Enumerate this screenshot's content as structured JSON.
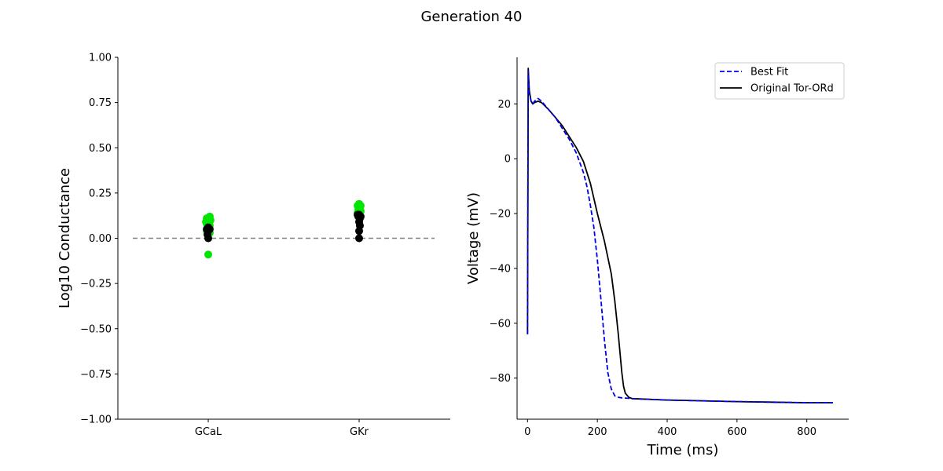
{
  "figure": {
    "title": "Generation 40"
  },
  "chart_data": [
    {
      "type": "scatter",
      "title": "",
      "xlabel": "",
      "ylabel": "Log10 Conductance",
      "categories": [
        "GCaL",
        "GKr"
      ],
      "ylim": [
        -1.0,
        1.0
      ],
      "yticks": [
        -1.0,
        -0.75,
        -0.5,
        -0.25,
        0.0,
        0.25,
        0.5,
        0.75,
        1.0
      ],
      "ytick_labels": [
        "−1.00",
        "−0.75",
        "−0.50",
        "−0.25",
        "0.00",
        "0.25",
        "0.50",
        "0.75",
        "1.00"
      ],
      "reference_line": {
        "y": 0.0,
        "style": "dashed",
        "color": "#808080"
      },
      "series": [
        {
          "color": "#00e600",
          "points": [
            {
              "category": "GCaL",
              "offset": -0.01,
              "y": 0.11
            },
            {
              "category": "GCaL",
              "offset": 0.01,
              "y": 0.12
            },
            {
              "category": "GCaL",
              "offset": 0.0,
              "y": 0.1
            },
            {
              "category": "GCaL",
              "offset": -0.015,
              "y": 0.09
            },
            {
              "category": "GCaL",
              "offset": 0.015,
              "y": 0.1
            },
            {
              "category": "GCaL",
              "offset": -0.01,
              "y": 0.08
            },
            {
              "category": "GCaL",
              "offset": 0.01,
              "y": 0.07
            },
            {
              "category": "GCaL",
              "offset": -0.005,
              "y": 0.06
            },
            {
              "category": "GCaL",
              "offset": 0.005,
              "y": 0.05
            },
            {
              "category": "GCaL",
              "offset": -0.01,
              "y": 0.04
            },
            {
              "category": "GCaL",
              "offset": 0.01,
              "y": 0.03
            },
            {
              "category": "GCaL",
              "offset": 0.0,
              "y": -0.09
            },
            {
              "category": "GKr",
              "offset": 0.0,
              "y": 0.19
            },
            {
              "category": "GKr",
              "offset": 0.01,
              "y": 0.18
            },
            {
              "category": "GKr",
              "offset": -0.01,
              "y": 0.18
            },
            {
              "category": "GKr",
              "offset": 0.005,
              "y": 0.17
            },
            {
              "category": "GKr",
              "offset": -0.005,
              "y": 0.16
            },
            {
              "category": "GKr",
              "offset": 0.01,
              "y": 0.15
            },
            {
              "category": "GKr",
              "offset": -0.01,
              "y": 0.14
            },
            {
              "category": "GKr",
              "offset": 0.0,
              "y": 0.13
            }
          ]
        },
        {
          "color": "#000000",
          "points": [
            {
              "category": "GCaL",
              "offset": 0.0,
              "y": 0.06
            },
            {
              "category": "GCaL",
              "offset": 0.01,
              "y": 0.05
            },
            {
              "category": "GCaL",
              "offset": -0.01,
              "y": 0.05
            },
            {
              "category": "GCaL",
              "offset": 0.0,
              "y": 0.04
            },
            {
              "category": "GCaL",
              "offset": -0.005,
              "y": 0.02
            },
            {
              "category": "GCaL",
              "offset": 0.0,
              "y": 0.0
            },
            {
              "category": "GKr",
              "offset": -0.01,
              "y": 0.13
            },
            {
              "category": "GKr",
              "offset": 0.0,
              "y": 0.13
            },
            {
              "category": "GKr",
              "offset": 0.01,
              "y": 0.12
            },
            {
              "category": "GKr",
              "offset": -0.005,
              "y": 0.12
            },
            {
              "category": "GKr",
              "offset": 0.005,
              "y": 0.11
            },
            {
              "category": "GKr",
              "offset": 0.0,
              "y": 0.09
            },
            {
              "category": "GKr",
              "offset": 0.005,
              "y": 0.07
            },
            {
              "category": "GKr",
              "offset": 0.0,
              "y": 0.04
            },
            {
              "category": "GKr",
              "offset": 0.0,
              "y": 0.0
            }
          ]
        }
      ]
    },
    {
      "type": "line",
      "title": "",
      "xlabel": "Time (ms)",
      "ylabel": "Voltage (mV)",
      "xlim": [
        -30,
        920
      ],
      "ylim": [
        -95,
        37
      ],
      "xticks": [
        0,
        200,
        400,
        600,
        800
      ],
      "xtick_labels": [
        "0",
        "200",
        "400",
        "600",
        "800"
      ],
      "yticks": [
        -80,
        -60,
        -40,
        -20,
        0,
        20
      ],
      "ytick_labels": [
        "−80",
        "−60",
        "−40",
        "−20",
        "0",
        "20"
      ],
      "legend": {
        "placement": "top-right"
      },
      "series": [
        {
          "name": "Best Fit",
          "color": "#0000ee",
          "style": "dashed",
          "x": [
            0,
            2,
            5,
            10,
            15,
            20,
            30,
            40,
            60,
            80,
            100,
            120,
            140,
            160,
            170,
            180,
            190,
            200,
            210,
            220,
            230,
            240,
            250,
            260,
            270,
            280,
            300,
            400,
            500,
            600,
            700,
            800,
            875
          ],
          "y": [
            -64,
            32,
            24,
            21,
            20,
            21,
            22,
            21,
            18,
            15,
            11,
            7,
            2,
            -5,
            -10,
            -17,
            -25,
            -37,
            -51,
            -66,
            -78,
            -84,
            -86.5,
            -87,
            -87.2,
            -87.3,
            -87.5,
            -88,
            -88.3,
            -88.6,
            -88.8,
            -89,
            -89
          ]
        },
        {
          "name": "Original Tor-ORd",
          "color": "#000000",
          "style": "solid",
          "x": [
            0,
            2,
            5,
            10,
            15,
            20,
            30,
            40,
            60,
            80,
            100,
            120,
            140,
            160,
            180,
            200,
            220,
            240,
            250,
            260,
            270,
            275,
            280,
            290,
            300,
            400,
            500,
            600,
            700,
            800,
            875
          ],
          "y": [
            -64,
            33,
            25,
            21,
            20,
            20.5,
            21,
            20.5,
            18,
            15,
            12,
            8,
            4,
            -1,
            -9,
            -20,
            -30,
            -42,
            -52,
            -64,
            -78,
            -83,
            -85.5,
            -87,
            -87.5,
            -88,
            -88.3,
            -88.6,
            -88.8,
            -89,
            -89
          ]
        }
      ]
    }
  ]
}
